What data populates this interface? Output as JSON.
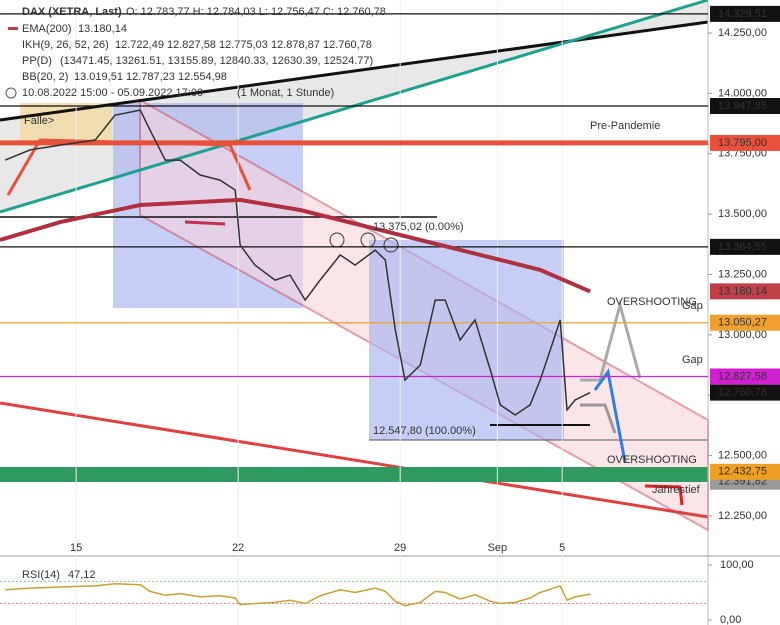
{
  "chart_data": {
    "type": "line",
    "ohlc": "O: 12.783,77   H: 12.784,03   L: 12.756,47   C: 12.760,78",
    "indicators": [
      {
        "name": "IKH(9, 26, 52, 26)",
        "text": "12.722,49  12.827,58  12.775,03  12.878,87  12.760,78"
      },
      {
        "name": "PP(D)",
        "text": "(13471.45, 13261.51, 13155.89, 12840.33, 12630.39, 12524.77)"
      },
      {
        "name": "BB(20, 2)",
        "text": "13.019,51  12.787,23  12.554,98"
      }
    ],
    "period": "10.08.2022 15:00 - 05.09.2022 17:00",
    "period_note": "(1 Monat, 1 Stunde)",
    "x": [
      0.81,
      1.58,
      2.51,
      3.59,
      4.2,
      4.98,
      5.28,
      5.75,
      6.21,
      6.83,
      7.44,
      7.91,
      8.06,
      8.52,
      9.14,
      9.6,
      10.07,
      10.53,
      11.15,
      11.61,
      12.23,
      12.54,
      12.85,
      13.15,
      13.62,
      14.08,
      14.39,
      14.85,
      15.31,
      15.78,
      16.09,
      16.55,
      17.01,
      17.32,
      17.63,
      17.94,
      18.15,
      18.4,
      18.86
    ],
    "series": [
      {
        "name": "DAX (XETRA, Last)",
        "color": "#333333",
        "values": [
          13724,
          13766,
          13786,
          13807,
          13910,
          13931,
          13848,
          13724,
          13724,
          13662,
          13641,
          13600,
          13372,
          13289,
          13227,
          13248,
          13144,
          13227,
          13331,
          13289,
          13351,
          13310,
          13020,
          12813,
          12875,
          13144,
          13144,
          12979,
          13062,
          12855,
          12710,
          12668,
          12710,
          12813,
          12937,
          13062,
          12689,
          12730,
          12761
        ]
      },
      {
        "name": "EMA(200)",
        "color": "#b03040",
        "legend_value": "13.180,14",
        "x": [
          0.65,
          2.51,
          4.98,
          8.06,
          9.91,
          11.77,
          13.62,
          15.47,
          17.32,
          18.86
        ],
        "values": [
          13393,
          13467,
          13538,
          13559,
          13517,
          13455,
          13393,
          13331,
          13269,
          13180.14
        ]
      }
    ],
    "xlim": [
      0.65,
      22.5
    ],
    "xticks": [
      {
        "value": 3,
        "label": "15"
      },
      {
        "value": 8,
        "label": "22"
      },
      {
        "value": 13,
        "label": "29"
      },
      {
        "value": 16,
        "label": "Sep"
      },
      {
        "value": 18,
        "label": "5"
      }
    ],
    "ylim": [
      12084,
      14387
    ],
    "yticks": [
      {
        "value": 14250,
        "label": "14.250,00"
      },
      {
        "value": 14000,
        "label": "14.000,00"
      },
      {
        "value": 13750,
        "label": "13.750,00"
      },
      {
        "value": 13500,
        "label": "13.500,00"
      },
      {
        "value": 13250,
        "label": "13.250,00"
      },
      {
        "value": 13000,
        "label": "13.000,00"
      },
      {
        "value": 12750,
        "label": "12.750,00"
      },
      {
        "value": 12500,
        "label": "12.500,00"
      },
      {
        "value": 12250,
        "label": "12.250,00"
      }
    ],
    "levels": [
      {
        "value": 14329.51,
        "label": "14.329,51",
        "color": "#111111",
        "line": true
      },
      {
        "value": 13947.85,
        "label": "13.947,85",
        "color": "#111111",
        "line": true
      },
      {
        "value": 13795,
        "label": "13.795,00",
        "color": "#e8503a",
        "line": true
      },
      {
        "value": 13364.55,
        "label": "13.364,55",
        "color": "#111111",
        "line": true
      },
      {
        "value": 13180.14,
        "label": "13.180,14",
        "color": "#c0404a",
        "line": false
      },
      {
        "value": 13050.27,
        "label": "13.050,27",
        "color": "#f0a030",
        "line": true
      },
      {
        "value": 12827.58,
        "label": "12.827,58",
        "color": "#d020d0",
        "line": true
      },
      {
        "value": 12760.78,
        "label": "12.760,78",
        "color": "#111111",
        "line": false
      },
      {
        "value": 12391.82,
        "label": "12.391,82",
        "color": "#9a9a9a",
        "line": false
      },
      {
        "value": 12432.75,
        "label": "12.432,75",
        "color": "#f0a020",
        "line": false
      }
    ],
    "annotations": [
      "Pre-Pandemie",
      "13.375,02 (0.00%)",
      "12.547,80 (100.00%)",
      "OVERSHOOTING",
      "OVERSHOOTING",
      "Gap",
      "Gap",
      "Jahrestief",
      "Falle>"
    ],
    "rsi": {
      "name": "RSI(14)",
      "legend_value": "47,12",
      "color": "#c8a030",
      "values": [
        55,
        58,
        60,
        62,
        66,
        64,
        52,
        45,
        48,
        42,
        44,
        40,
        28,
        30,
        32,
        36,
        30,
        44,
        55,
        50,
        58,
        52,
        34,
        26,
        32,
        52,
        50,
        38,
        46,
        34,
        30,
        32,
        40,
        50,
        56,
        62,
        36,
        42,
        47.12
      ],
      "ylim": [
        0,
        100
      ],
      "yticks": [
        {
          "value": 100,
          "label": "100,00"
        },
        {
          "value": 0,
          "label": "0,00"
        }
      ]
    }
  }
}
